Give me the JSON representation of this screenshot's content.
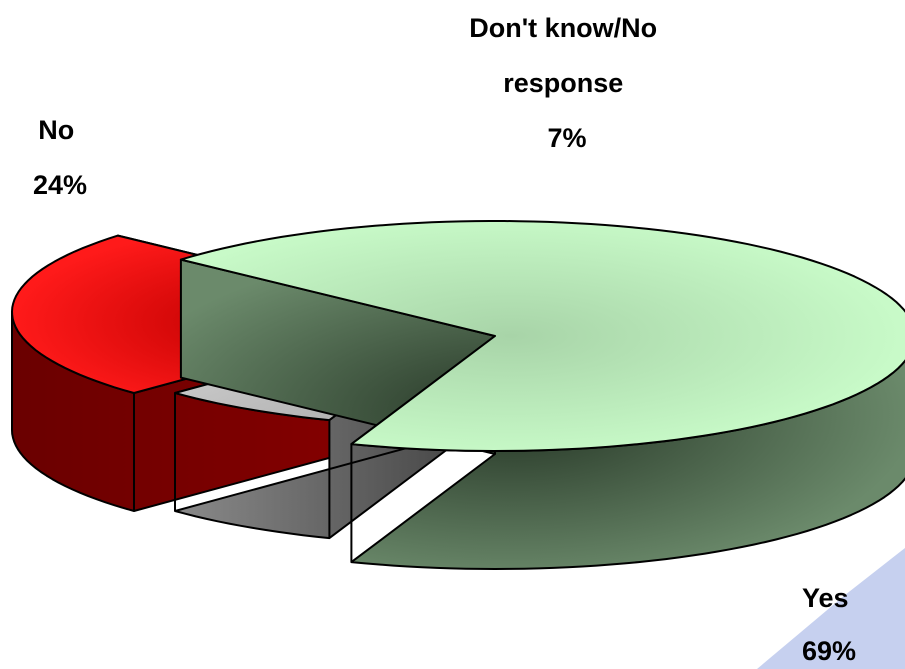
{
  "chart_data": {
    "type": "pie",
    "style": "3d-exploded",
    "legend": "none",
    "slices": [
      {
        "label": "Yes",
        "value": 69,
        "value_label": "69%",
        "color": "#ccffcc",
        "side_color": "#5f7f5f"
      },
      {
        "label": "No",
        "value": 24,
        "value_label": "24%",
        "color": "#ff0000",
        "side_color": "#800000"
      },
      {
        "label": "Don't know/No response",
        "label_lines": [
          "Don't know/No",
          "response"
        ],
        "value": 7,
        "value_label": "7%",
        "color": "#c0c0c0",
        "side_color": "#606060"
      }
    ]
  }
}
